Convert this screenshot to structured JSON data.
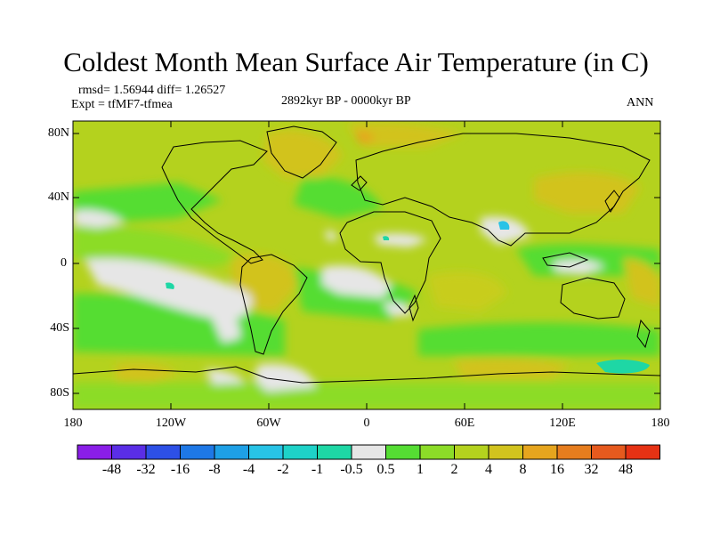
{
  "title": "Coldest Month Mean Surface Air Temperature (in C)",
  "stats": {
    "rmsd_diff": "rmsd= 1.56944 diff= 1.26527",
    "experiment": "Expt = tfMF7-tfmea",
    "period": "2892kyr BP - 0000kyr BP",
    "season": "ANN"
  },
  "axes": {
    "lat_ticks": [
      "80N",
      "40N",
      "0",
      "40S",
      "80S"
    ],
    "lon_ticks": [
      "180",
      "120W",
      "60W",
      "0",
      "60E",
      "120E",
      "180"
    ]
  },
  "colorbar": {
    "labels": [
      "-48",
      "-32",
      "-16",
      "-8",
      "-4",
      "-2",
      "-1",
      "-0.5",
      "0.5",
      "1",
      "2",
      "4",
      "8",
      "16",
      "32",
      "48"
    ],
    "colors": [
      "#8a1ee8",
      "#5a2ee6",
      "#2d50e6",
      "#1e78e6",
      "#1ea0e6",
      "#28c3e6",
      "#1ed2c8",
      "#1ed7a5",
      "#e6e6e6",
      "#55dd33",
      "#8cdc28",
      "#b4d21e",
      "#d2c31e",
      "#e6a51e",
      "#e67d1e",
      "#e65a1e",
      "#e63214"
    ]
  },
  "icons": {
    "continents": "coastline-outlines"
  }
}
